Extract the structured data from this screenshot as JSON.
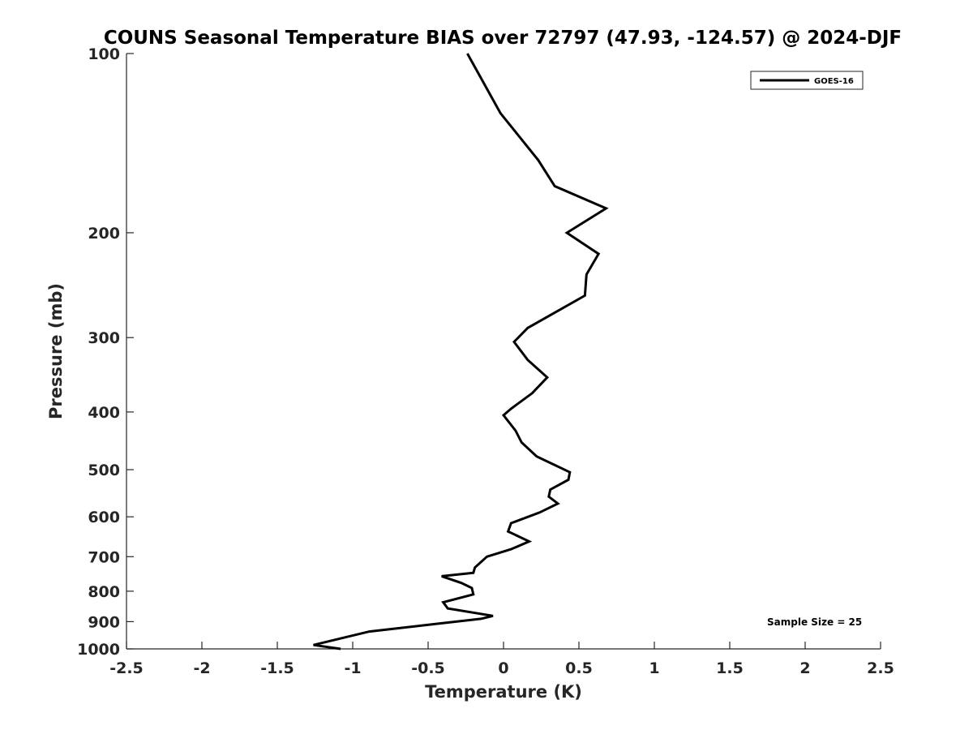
{
  "chart_data": {
    "type": "line",
    "title": "COUNS Seasonal Temperature BIAS over 72797 (47.93, -124.57) @ 2024-DJF",
    "xlabel": "Temperature (K)",
    "ylabel": "Pressure (mb)",
    "xlim": [
      -2.5,
      2.5
    ],
    "ylim": [
      100,
      1000
    ],
    "y_scale": "log",
    "y_reversed": true,
    "grid": false,
    "xticks": [
      -2.5,
      -2,
      -1.5,
      -1,
      -0.5,
      0,
      0.5,
      1,
      1.5,
      2,
      2.5
    ],
    "xtick_labels": [
      "-2.5",
      "-2",
      "-1.5",
      "-1",
      "-0.5",
      "0",
      "0.5",
      "1",
      "1.5",
      "2",
      "2.5"
    ],
    "yticks": [
      100,
      200,
      300,
      400,
      500,
      600,
      700,
      800,
      900,
      1000
    ],
    "ytick_labels": [
      "100",
      "200",
      "300",
      "400",
      "500",
      "600",
      "700",
      "800",
      "900",
      "1000"
    ],
    "legend_position": "top-right",
    "series": [
      {
        "name": "GOES-16",
        "color": "#000000",
        "x": [
          -0.24,
          -0.02,
          0.23,
          0.34,
          0.68,
          0.42,
          0.63,
          0.55,
          0.54,
          0.16,
          0.07,
          0.16,
          0.29,
          0.19,
          0.05,
          0.0,
          0.08,
          0.12,
          0.22,
          0.44,
          0.43,
          0.31,
          0.3,
          0.36,
          0.24,
          0.05,
          0.03,
          0.17,
          0.05,
          -0.11,
          -0.19,
          -0.2,
          -0.41,
          -0.28,
          -0.21,
          -0.2,
          -0.4,
          -0.37,
          -0.07,
          -0.15,
          -0.48,
          -0.89,
          -1.26,
          -1.08
        ],
        "y": [
          100,
          126,
          151,
          167,
          182,
          200,
          217,
          235,
          255,
          289,
          305,
          327,
          350,
          372,
          395,
          405,
          430,
          450,
          475,
          505,
          520,
          540,
          555,
          570,
          590,
          615,
          635,
          660,
          680,
          700,
          730,
          745,
          755,
          775,
          790,
          810,
          835,
          855,
          880,
          890,
          910,
          935,
          985,
          1000
        ]
      }
    ],
    "legend": [
      "GOES-16"
    ],
    "annotations": [
      "Sample Size = 25"
    ]
  }
}
